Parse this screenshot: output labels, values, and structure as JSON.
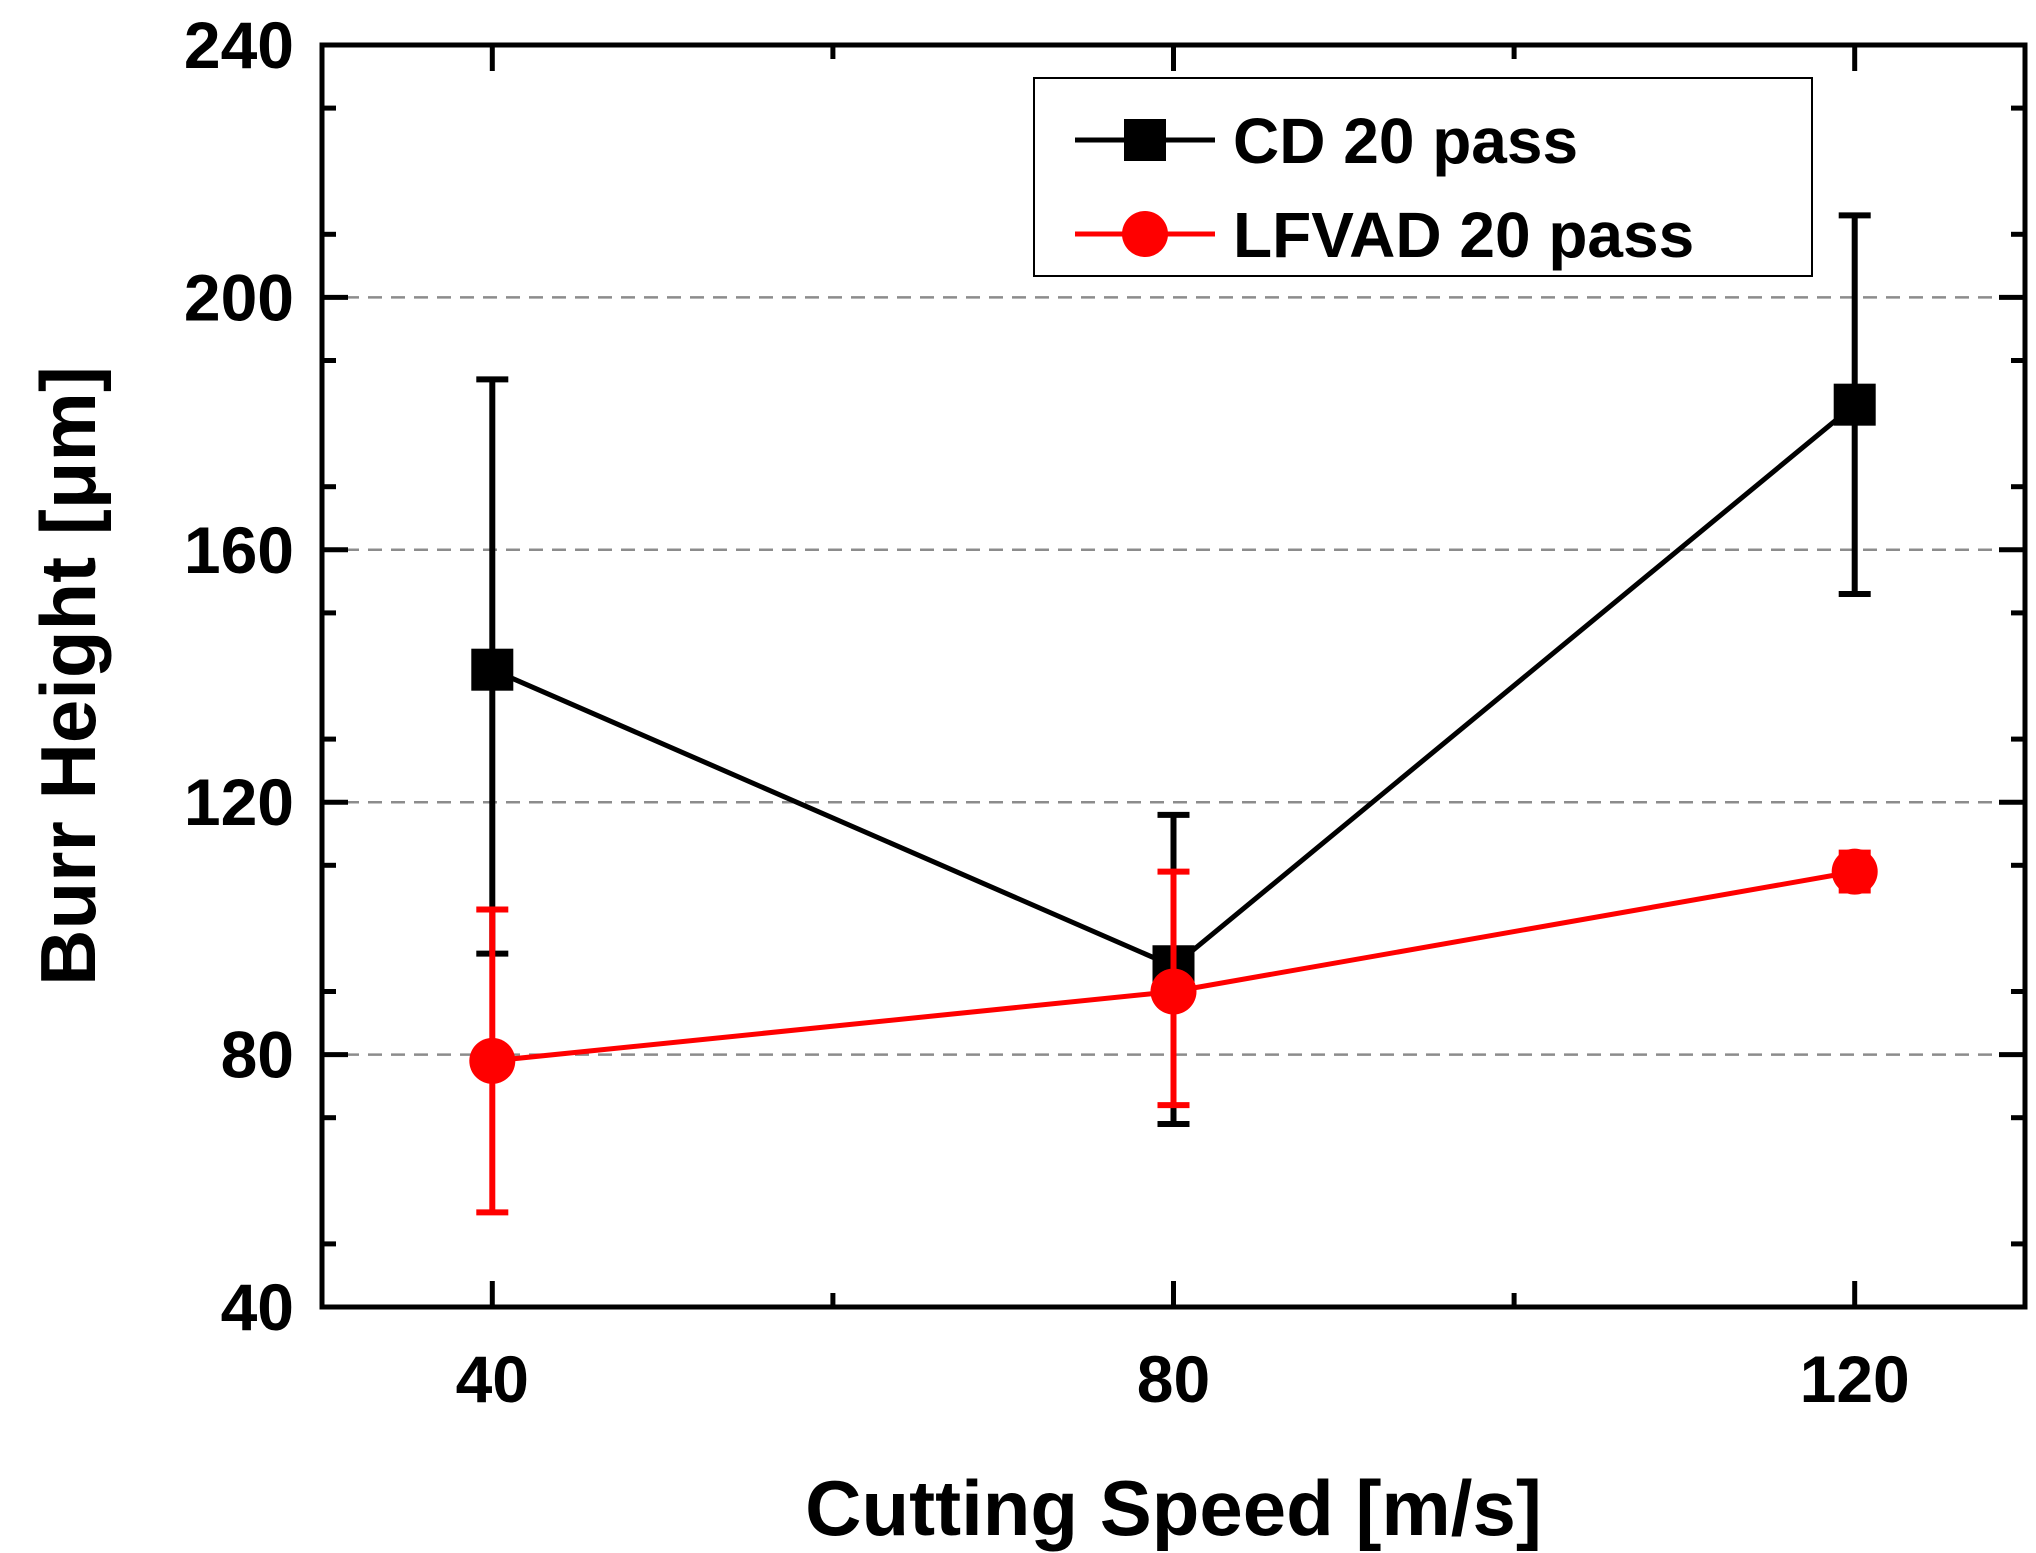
{
  "chart_data": {
    "type": "line",
    "title": "",
    "xlabel": "Cutting Speed [m/s]",
    "ylabel": "Burr Height [μm]",
    "x": [
      40,
      80,
      120
    ],
    "xlim": [
      30,
      130
    ],
    "ylim": [
      40,
      240
    ],
    "xticks": [
      40,
      80,
      120
    ],
    "yticks": [
      40,
      80,
      120,
      160,
      200,
      240
    ],
    "grid": "horizontal dashed at 80, 120, 160, 200",
    "legend_position": "top-right",
    "series": [
      {
        "name": "CD 20 pass",
        "color": "#000000",
        "marker": "square",
        "values": [
          141,
          94,
          183
        ],
        "error_low": [
          96,
          69,
          153
        ],
        "error_high": [
          187,
          118,
          213
        ]
      },
      {
        "name": "LFVAD 20 pass",
        "color": "#ff0000",
        "marker": "circle",
        "values": [
          79,
          90,
          109
        ],
        "error_low": [
          55,
          72,
          106
        ],
        "error_high": [
          103,
          109,
          112
        ]
      }
    ]
  }
}
